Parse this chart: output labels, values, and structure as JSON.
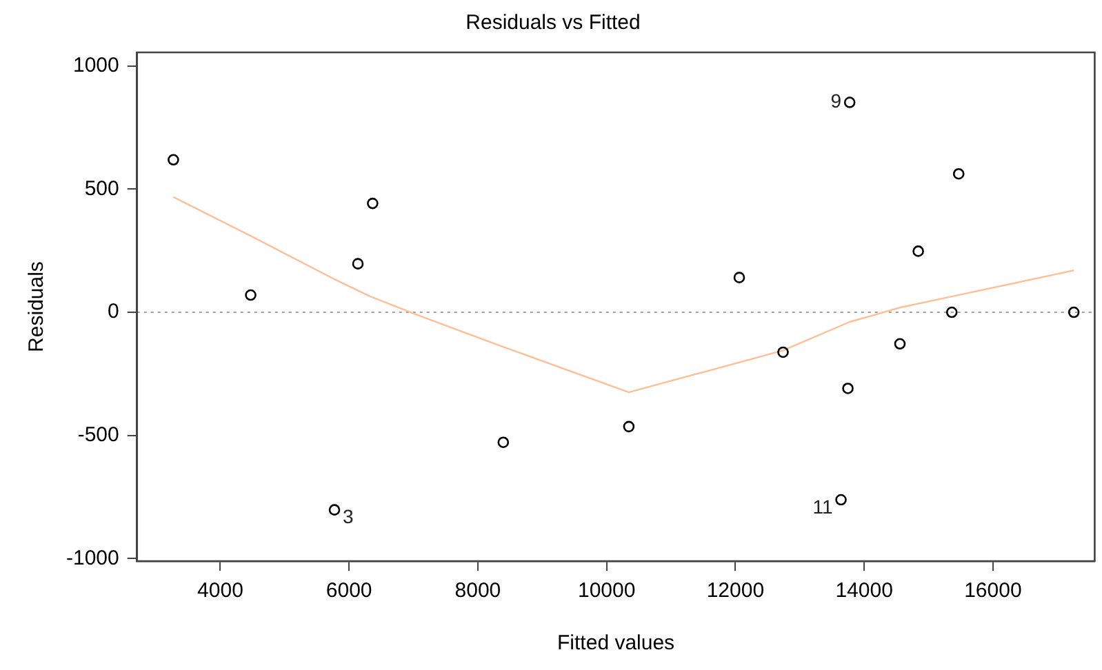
{
  "chart_data": {
    "type": "scatter",
    "title": "Residuals vs Fitted",
    "xlabel": "Fitted values",
    "ylabel": "Residuals",
    "xlim": [
      2707,
      17580
    ],
    "xticks": [
      4000,
      6000,
      8000,
      10000,
      12000,
      14000,
      16000
    ],
    "ylim": [
      -1010,
      1055
    ],
    "yticks": [
      -1000,
      -500,
      0,
      500,
      1000
    ],
    "grid": false,
    "legend": false,
    "marker": "circle",
    "series": [
      {
        "type": "scatter",
        "color": "#000000",
        "x": [
          3271,
          4472,
          5773,
          6137,
          6366,
          8395,
          10345,
          12060,
          12740,
          13775,
          13640,
          13747,
          14555,
          14840,
          15468,
          15361,
          17256
        ],
        "values": [
          619,
          70,
          -802,
          197,
          442,
          -528,
          -464,
          141,
          -162,
          852,
          -761,
          -309,
          -128,
          248,
          562,
          0,
          0
        ]
      },
      {
        "type": "line",
        "color": "#fdbf96",
        "marker": "none",
        "x": [
          3271,
          4480,
          5766,
          6330,
          7052,
          8339,
          10345,
          12740,
          13775,
          14555,
          15361,
          17256
        ],
        "values": [
          468,
          309,
          135,
          64,
          -10,
          -135,
          -325,
          -155,
          -39,
          19,
          64,
          170
        ]
      }
    ],
    "ref_lines": [
      {
        "axis": "y",
        "value": 0,
        "color": "#a0a0a0",
        "line_style": "dotted"
      }
    ],
    "annotations": [
      {
        "text": "3",
        "x": 5773,
        "y": -802
      },
      {
        "text": "9",
        "x": 13775,
        "y": 852
      },
      {
        "text": "11",
        "x": 13640,
        "y": -761
      }
    ]
  }
}
